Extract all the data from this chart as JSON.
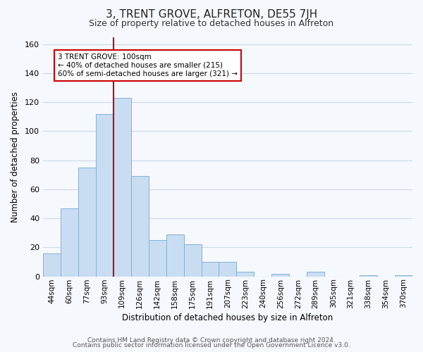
{
  "title": "3, TRENT GROVE, ALFRETON, DE55 7JH",
  "subtitle": "Size of property relative to detached houses in Alfreton",
  "xlabel": "Distribution of detached houses by size in Alfreton",
  "ylabel": "Number of detached properties",
  "bar_labels": [
    "44sqm",
    "60sqm",
    "77sqm",
    "93sqm",
    "109sqm",
    "126sqm",
    "142sqm",
    "158sqm",
    "175sqm",
    "191sqm",
    "207sqm",
    "223sqm",
    "240sqm",
    "256sqm",
    "272sqm",
    "289sqm",
    "305sqm",
    "321sqm",
    "338sqm",
    "354sqm",
    "370sqm"
  ],
  "bar_heights": [
    16,
    47,
    75,
    112,
    123,
    69,
    25,
    29,
    22,
    10,
    10,
    3,
    0,
    2,
    0,
    3,
    0,
    0,
    1,
    0,
    1
  ],
  "bar_color": "#c9ddf2",
  "bar_edge_color": "#85afd4",
  "ylim": [
    0,
    165
  ],
  "yticks": [
    0,
    20,
    40,
    60,
    80,
    100,
    120,
    140,
    160
  ],
  "property_line_x": 3.5,
  "property_line_color": "#bb0000",
  "annotation_title": "3 TRENT GROVE: 100sqm",
  "annotation_line1": "← 40% of detached houses are smaller (215)",
  "annotation_line2": "60% of semi-detached houses are larger (321) →",
  "annotation_box_color": "#ffffff",
  "annotation_box_edge_color": "#cc0000",
  "footer1": "Contains HM Land Registry data © Crown copyright and database right 2024.",
  "footer2": "Contains public sector information licensed under the Open Government Licence v3.0.",
  "background_color": "#f5f8fd",
  "grid_color": "#ccd8e8",
  "title_fontsize": 11,
  "subtitle_fontsize": 9,
  "xlabel_fontsize": 8.5,
  "ylabel_fontsize": 8.5,
  "tick_fontsize": 7.5,
  "footer_fontsize": 6.5
}
